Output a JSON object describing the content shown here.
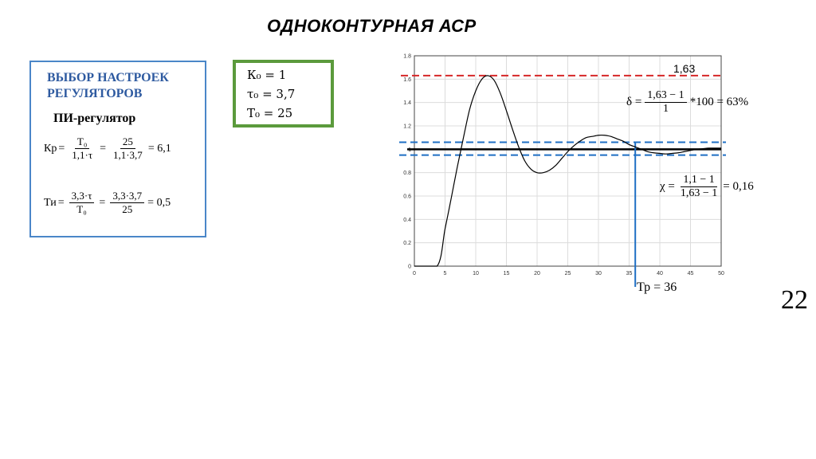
{
  "slide": {
    "title": "ОДНОКОНТУРНАЯ АСР",
    "page_number": "22"
  },
  "settings_box": {
    "heading_line1": "ВЫБОР НАСТРОЕК",
    "heading_line2": "РЕГУЛЯТОРОВ",
    "subheading": "ПИ-регулятор",
    "kp": {
      "lhs": "Кр",
      "eq": "=",
      "num1": "Т₀",
      "den1": "1,1·τ",
      "num2": "25",
      "den2": "1,1·3,7",
      "result": "= 6,1"
    },
    "ti": {
      "lhs": "Ти",
      "eq": "=",
      "num1": "3,3·τ",
      "den1": "Т₀",
      "num2": "3,3·3,7",
      "den2": "25",
      "result": "= 0,5"
    }
  },
  "params_box": {
    "k": "К₀ = 1",
    "tau": "τ₀ = 3,7",
    "t": "T₀ = 25"
  },
  "annotations": {
    "peak_label": "1,63",
    "overshoot": {
      "lhs": "δ =",
      "num": "1,63 − 1",
      "den": "1",
      "rhs": "*100 = 63%"
    },
    "decay": {
      "lhs": "χ =",
      "num": "1,1 − 1",
      "den": "1,63 − 1",
      "rhs": "= 0,16"
    },
    "settling_time": "Тр = 36"
  },
  "colors": {
    "settings_border": "#4a86c8",
    "heading": "#2e5aa0",
    "params_border": "#5b9a3c",
    "peak_line": "#d62728",
    "band_line": "#1f6fc4",
    "settling_line": "#1f6fc4",
    "curve": "#000000"
  },
  "chart_data": {
    "type": "line",
    "title": "",
    "xlabel": "",
    "ylabel": "",
    "xlim": [
      0,
      50
    ],
    "ylim": [
      0,
      1.8
    ],
    "xticks": [
      0,
      5,
      10,
      15,
      20,
      25,
      30,
      35,
      40,
      45,
      50
    ],
    "yticks": [
      0,
      0.2,
      0.4,
      0.6,
      0.8,
      1,
      1.2,
      1.4,
      1.6,
      1.8
    ],
    "grid": true,
    "series": [
      {
        "x": [
          0,
          3.7,
          5,
          6,
          7,
          8,
          9,
          10,
          11,
          12,
          13,
          14,
          15,
          16,
          17,
          18,
          19,
          20,
          21,
          22,
          23,
          24,
          25,
          26,
          27,
          28,
          29,
          30,
          31,
          32,
          33,
          34,
          35,
          36,
          37,
          38,
          39,
          40,
          41,
          42,
          43,
          44,
          45,
          46,
          47,
          48,
          49,
          50
        ],
        "y": [
          0,
          0,
          0.32,
          0.58,
          0.85,
          1.1,
          1.34,
          1.5,
          1.6,
          1.63,
          1.59,
          1.48,
          1.33,
          1.17,
          1.02,
          0.9,
          0.83,
          0.8,
          0.8,
          0.82,
          0.86,
          0.92,
          0.98,
          1.03,
          1.07,
          1.1,
          1.11,
          1.12,
          1.12,
          1.11,
          1.09,
          1.07,
          1.04,
          1.02,
          1.0,
          0.98,
          0.97,
          0.965,
          0.96,
          0.965,
          0.97,
          0.98,
          0.99,
          1.0,
          1.005,
          1.01,
          1.01,
          1.01
        ]
      }
    ],
    "reference_lines": {
      "setpoint": 1.0,
      "peak": 1.63,
      "band_upper": 1.06,
      "band_lower": 0.95,
      "settling_x": 36
    }
  }
}
